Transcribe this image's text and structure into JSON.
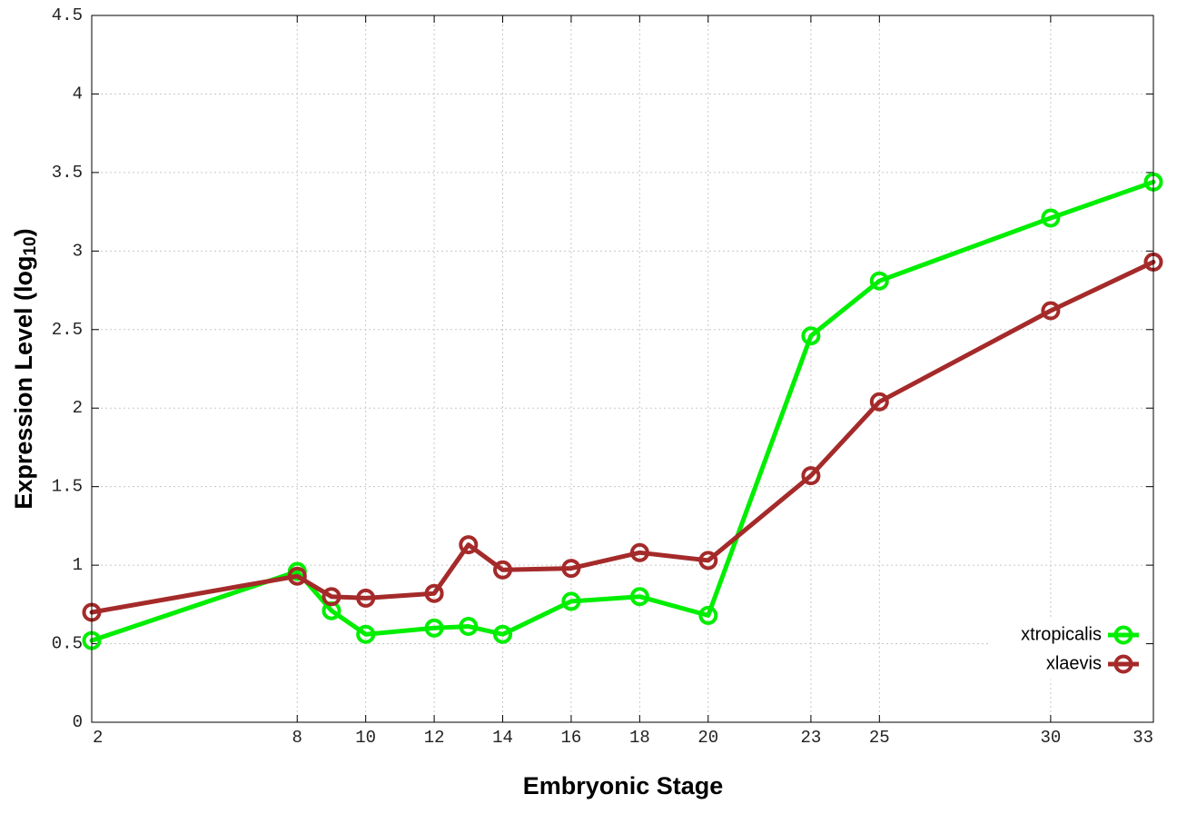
{
  "chart_data": {
    "type": "line",
    "title": "",
    "xlabel": "Embryonic Stage",
    "ylabel": "Expression Level (log10)",
    "ylabel_main": "Expression Level (log",
    "ylabel_sub": "10",
    "ylabel_close": ")",
    "x": [
      2,
      8,
      9,
      10,
      12,
      13,
      14,
      16,
      18,
      20,
      23,
      25,
      30,
      33
    ],
    "xticks": [
      2,
      8,
      10,
      12,
      14,
      16,
      18,
      20,
      23,
      25,
      30,
      33
    ],
    "xtick_labels": [
      "2",
      "8",
      "10",
      "12",
      "14",
      "16",
      "18",
      "20",
      "23",
      "25",
      "30",
      "33"
    ],
    "xlim": [
      2,
      33
    ],
    "ylim": [
      0,
      4.5
    ],
    "yticks": [
      0,
      0.5,
      1,
      1.5,
      2,
      2.5,
      3,
      3.5,
      4,
      4.5
    ],
    "ytick_labels": [
      "0",
      "0.5",
      "1",
      "1.5",
      "2",
      "2.5",
      "3",
      "3.5",
      "4",
      "4.5"
    ],
    "grid": true,
    "legend_position": "bottom-right",
    "series": [
      {
        "name": "xtropicalis",
        "color": "#00ee00",
        "marker": "circle-open",
        "values": [
          0.52,
          0.96,
          0.71,
          0.56,
          0.6,
          0.61,
          0.56,
          0.77,
          0.8,
          0.68,
          2.46,
          2.81,
          3.21,
          3.44
        ]
      },
      {
        "name": "xlaevis",
        "color": "#a52a2a",
        "marker": "circle-open",
        "values": [
          0.7,
          0.93,
          0.8,
          0.79,
          0.82,
          1.13,
          0.97,
          0.98,
          1.08,
          1.03,
          1.57,
          2.04,
          2.62,
          2.93
        ]
      }
    ]
  }
}
